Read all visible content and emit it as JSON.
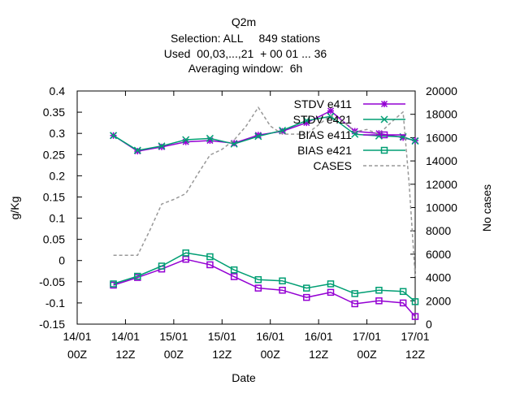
{
  "chart_data": {
    "type": "line",
    "title_lines": [
      "Q2m",
      "Selection: ALL     849 stations",
      "Used  00,03,...,21  + 00 01 ... 36",
      "Averaging window:  6h"
    ],
    "xlabel": "Date",
    "ylabel": "g/Kg",
    "y2label": "No cases",
    "x_unit": "hours from 14/01 00Z",
    "xlim": [
      0,
      84
    ],
    "ylim": [
      -0.15,
      0.4
    ],
    "y2lim": [
      0,
      20000
    ],
    "x_ticks": [
      {
        "x": 0,
        "line1": "14/01",
        "line2": "00Z"
      },
      {
        "x": 12,
        "line1": "14/01",
        "line2": "12Z"
      },
      {
        "x": 24,
        "line1": "15/01",
        "line2": "00Z"
      },
      {
        "x": 36,
        "line1": "15/01",
        "line2": "12Z"
      },
      {
        "x": 48,
        "line1": "16/01",
        "line2": "00Z"
      },
      {
        "x": 60,
        "line1": "16/01",
        "line2": "12Z"
      },
      {
        "x": 72,
        "line1": "17/01",
        "line2": "00Z"
      },
      {
        "x": 84,
        "line1": "17/01",
        "line2": "12Z"
      }
    ],
    "y_ticks": [
      "0.4",
      "0.35",
      "0.3",
      "0.25",
      "0.2",
      "0.15",
      "0.1",
      "0.05",
      "0",
      "-0.05",
      "-0.1",
      "-0.15"
    ],
    "y_tick_values": [
      0.4,
      0.35,
      0.3,
      0.25,
      0.2,
      0.15,
      0.1,
      0.05,
      0,
      -0.05,
      -0.1,
      -0.15
    ],
    "y2_ticks": [
      "20000",
      "18000",
      "16000",
      "14000",
      "12000",
      "10000",
      "8000",
      "6000",
      "4000",
      "2000",
      "0"
    ],
    "y2_tick_values": [
      20000,
      18000,
      16000,
      14000,
      12000,
      10000,
      8000,
      6000,
      4000,
      2000,
      0
    ],
    "grid": false,
    "legend_position": "top-right",
    "series": [
      {
        "name": "STDV e411",
        "axis": "y",
        "color": "#9400d3",
        "marker": "star",
        "x": [
          9,
          15,
          21,
          27,
          33,
          39,
          45,
          51,
          57,
          63,
          69,
          75,
          81,
          84
        ],
        "values": [
          0.295,
          0.258,
          0.268,
          0.28,
          0.283,
          0.277,
          0.296,
          0.305,
          0.325,
          0.353,
          0.305,
          0.3,
          0.29,
          0.283
        ]
      },
      {
        "name": "STDV e421",
        "axis": "y",
        "color": "#009e73",
        "marker": "cross",
        "x": [
          9,
          15,
          21,
          27,
          33,
          39,
          45,
          51,
          57,
          63,
          69,
          75,
          81,
          84
        ],
        "values": [
          0.295,
          0.26,
          0.27,
          0.285,
          0.288,
          0.275,
          0.293,
          0.307,
          0.33,
          0.34,
          0.298,
          0.294,
          0.292,
          0.282
        ]
      },
      {
        "name": "BIAS e411",
        "axis": "y",
        "color": "#9400d3",
        "marker": "square",
        "x": [
          9,
          15,
          21,
          27,
          33,
          39,
          45,
          51,
          57,
          63,
          69,
          75,
          81,
          84
        ],
        "values": [
          -0.058,
          -0.04,
          -0.02,
          0.003,
          -0.01,
          -0.038,
          -0.065,
          -0.07,
          -0.087,
          -0.075,
          -0.102,
          -0.095,
          -0.1,
          -0.132
        ]
      },
      {
        "name": "BIAS e421",
        "axis": "y",
        "color": "#009e73",
        "marker": "square",
        "x": [
          9,
          15,
          21,
          27,
          33,
          39,
          45,
          51,
          57,
          63,
          69,
          75,
          81,
          84
        ],
        "values": [
          -0.055,
          -0.037,
          -0.013,
          0.018,
          0.009,
          -0.022,
          -0.045,
          -0.048,
          -0.065,
          -0.055,
          -0.078,
          -0.07,
          -0.073,
          -0.097
        ]
      },
      {
        "name": "CASES",
        "axis": "y2",
        "color": "#999999",
        "marker": "none",
        "dashed": true,
        "x": [
          9,
          12,
          15,
          18,
          21,
          24,
          27,
          30,
          33,
          36,
          39,
          42,
          45,
          48,
          51,
          54,
          57,
          60,
          63,
          66,
          69,
          72,
          75,
          78,
          81,
          82.5,
          84
        ],
        "values": [
          5900,
          5900,
          5900,
          8000,
          10300,
          10700,
          11200,
          12900,
          14500,
          15000,
          15800,
          17000,
          18600,
          17000,
          16300,
          16300,
          16300,
          17100,
          17900,
          17400,
          16500,
          16700,
          16300,
          17300,
          18200,
          12000,
          4100
        ]
      }
    ]
  }
}
